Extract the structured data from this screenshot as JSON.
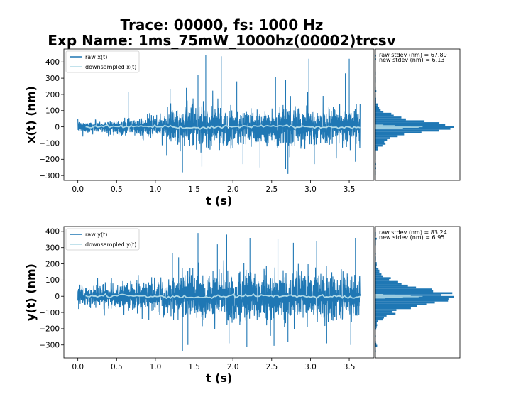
{
  "figure": {
    "title_line1": "Trace: 00000, fs: 1000 Hz",
    "title_line2": "Exp Name: 1ms_75mW_1000hz(00002)trcsv"
  },
  "colors": {
    "raw": "#1f77b4",
    "downsampled": "#add8e6"
  },
  "chart_data": [
    {
      "type": "line",
      "xlabel": "t (s)",
      "ylabel": "x(t) (nm)",
      "xlim": [
        -0.18,
        3.82
      ],
      "ylim": [
        -330,
        480
      ],
      "xticks": [
        0.0,
        0.5,
        1.0,
        1.5,
        2.0,
        2.5,
        3.0,
        3.5
      ],
      "xtick_labels": [
        "0.0",
        "0.5",
        "1.0",
        "1.5",
        "2.0",
        "2.5",
        "3.0",
        "3.5"
      ],
      "yticks": [
        -300,
        -200,
        -100,
        0,
        100,
        200,
        300,
        400
      ],
      "ytick_labels": [
        "−300",
        "−200",
        "−100",
        "0",
        "100",
        "200",
        "300",
        "400"
      ],
      "legend_position": "upper-left",
      "series": [
        {
          "name": "raw x(t)",
          "t_range": [
            0.0,
            3.64
          ],
          "stdev_nm": 67.89,
          "envelope": [
            {
              "t": 0.0,
              "amp": 40
            },
            {
              "t": 0.6,
              "amp": 50
            },
            {
              "t": 1.0,
              "amp": 80
            },
            {
              "t": 1.2,
              "amp": 115
            },
            {
              "t": 1.5,
              "amp": 140
            },
            {
              "t": 2.0,
              "amp": 130
            },
            {
              "t": 2.5,
              "amp": 135
            },
            {
              "t": 3.0,
              "amp": 130
            },
            {
              "t": 3.3,
              "amp": 110
            },
            {
              "t": 3.64,
              "amp": 140
            }
          ],
          "spikes": [
            {
              "t": 0.65,
              "v": 215
            },
            {
              "t": 1.19,
              "v": 235
            },
            {
              "t": 1.4,
              "v": 240
            },
            {
              "t": 1.55,
              "v": 320
            },
            {
              "t": 1.65,
              "v": 445
            },
            {
              "t": 1.85,
              "v": 435
            },
            {
              "t": 2.05,
              "v": 280
            },
            {
              "t": 2.55,
              "v": 305
            },
            {
              "t": 2.68,
              "v": 290
            },
            {
              "t": 2.98,
              "v": 420
            },
            {
              "t": 3.45,
              "v": 330
            },
            {
              "t": 3.5,
              "v": 420
            },
            {
              "t": 1.35,
              "v": -280
            },
            {
              "t": 1.6,
              "v": -245
            },
            {
              "t": 2.13,
              "v": -230
            },
            {
              "t": 2.35,
              "v": -250
            },
            {
              "t": 2.68,
              "v": -260
            },
            {
              "t": 2.71,
              "v": -290
            },
            {
              "t": 3.05,
              "v": -230
            },
            {
              "t": 3.58,
              "v": -215
            }
          ]
        },
        {
          "name": "downsampled x(t)",
          "t_range": [
            0.1,
            3.64
          ],
          "stdev_nm": 6.13
        }
      ],
      "histogram": {
        "raw_label": "raw stdev (nm) = 67.89",
        "new_label": "new stdev (nm) = 6.13"
      }
    },
    {
      "type": "line",
      "xlabel": "t (s)",
      "ylabel": "y(t) (nm)",
      "xlim": [
        -0.18,
        3.82
      ],
      "ylim": [
        -380,
        430
      ],
      "xticks": [
        0.0,
        0.5,
        1.0,
        1.5,
        2.0,
        2.5,
        3.0,
        3.5
      ],
      "xtick_labels": [
        "0.0",
        "0.5",
        "1.0",
        "1.5",
        "2.0",
        "2.5",
        "3.0",
        "3.5"
      ],
      "yticks": [
        -300,
        -200,
        -100,
        0,
        100,
        200,
        300,
        400
      ],
      "ytick_labels": [
        "−300",
        "−200",
        "−100",
        "0",
        "100",
        "200",
        "300",
        "400"
      ],
      "legend_position": "upper-left",
      "series": [
        {
          "name": "raw y(t)",
          "t_range": [
            0.0,
            3.64
          ],
          "stdev_nm": 83.24,
          "envelope": [
            {
              "t": 0.0,
              "amp": 80
            },
            {
              "t": 0.5,
              "amp": 85
            },
            {
              "t": 1.0,
              "amp": 105
            },
            {
              "t": 1.2,
              "amp": 140
            },
            {
              "t": 1.5,
              "amp": 165
            },
            {
              "t": 2.0,
              "amp": 165
            },
            {
              "t": 2.5,
              "amp": 160
            },
            {
              "t": 3.0,
              "amp": 165
            },
            {
              "t": 3.4,
              "amp": 160
            },
            {
              "t": 3.64,
              "amp": 170
            }
          ],
          "spikes": [
            {
              "t": 1.22,
              "v": 265
            },
            {
              "t": 1.3,
              "v": 240
            },
            {
              "t": 1.55,
              "v": 390
            },
            {
              "t": 1.8,
              "v": 320
            },
            {
              "t": 1.92,
              "v": 380
            },
            {
              "t": 2.22,
              "v": 360
            },
            {
              "t": 2.58,
              "v": 355
            },
            {
              "t": 2.78,
              "v": 330
            },
            {
              "t": 3.08,
              "v": 340
            },
            {
              "t": 3.58,
              "v": 360
            },
            {
              "t": 1.35,
              "v": -340
            },
            {
              "t": 1.42,
              "v": -300
            },
            {
              "t": 1.95,
              "v": -290
            },
            {
              "t": 2.18,
              "v": -310
            },
            {
              "t": 2.53,
              "v": -305
            },
            {
              "t": 2.71,
              "v": -280
            },
            {
              "t": 3.21,
              "v": -290
            },
            {
              "t": 3.52,
              "v": -300
            }
          ]
        },
        {
          "name": "downsampled y(t)",
          "t_range": [
            0.1,
            3.64
          ],
          "stdev_nm": 6.95
        }
      ],
      "histogram": {
        "raw_label": "raw stdev (nm) = 83.24",
        "new_label": "new stdev (nm) = 6.95"
      }
    }
  ]
}
